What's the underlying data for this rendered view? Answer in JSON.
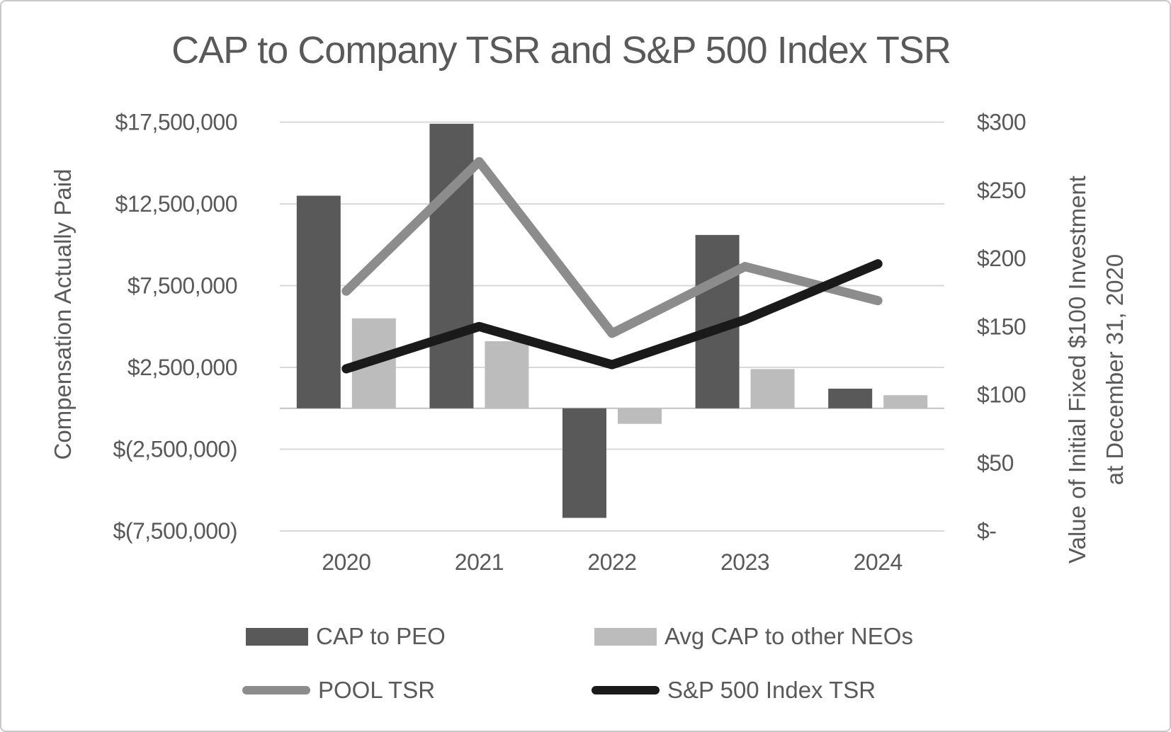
{
  "chart_data": {
    "type": "combo-bar-line",
    "title": "CAP to Company TSR and S&P 500 Index TSR",
    "categories": [
      "2020",
      "2021",
      "2022",
      "2023",
      "2024"
    ],
    "bar_series": [
      {
        "name": "CAP to PEO",
        "color": "#595959",
        "axis": "left",
        "values": [
          13000000,
          17400000,
          -6700000,
          10600000,
          1200000
        ]
      },
      {
        "name": "Avg CAP to other NEOs",
        "color": "#bcbcbc",
        "axis": "left",
        "values": [
          5500000,
          4100000,
          -950000,
          2400000,
          800000
        ]
      }
    ],
    "line_series": [
      {
        "name": "POOL TSR",
        "color": "#8c8c8c",
        "axis": "right",
        "values": [
          176,
          271,
          145,
          194,
          169
        ]
      },
      {
        "name": "S&P 500 Index TSR",
        "color": "#1a1a1a",
        "axis": "right",
        "values": [
          119,
          150,
          122,
          155,
          196
        ]
      }
    ],
    "left_axis": {
      "title": "Compensation Actually Paid",
      "min": -7500000,
      "max": 17500000,
      "tick_step": 5000000,
      "tick_labels": [
        "$17,500,000",
        "$12,500,000",
        "$7,500,000",
        "$2,500,000",
        "$(2,500,000)",
        "$(7,500,000)"
      ]
    },
    "right_axis": {
      "title_line1": "Value of Initial Fixed $100 Investment",
      "title_line2": "at December 31, 2020",
      "min": 0,
      "max": 300,
      "tick_step": 50,
      "tick_labels": [
        "$300",
        "$250",
        "$200",
        "$150",
        "$100",
        "$50",
        "$-"
      ]
    },
    "grid": true,
    "legend_position": "bottom",
    "colors": {
      "gridline": "#d9d9d9",
      "category_axis_line": "#c2c2c2",
      "text": "#595959",
      "background": "#ffffff",
      "frame_border": "#c9c9c9"
    }
  }
}
